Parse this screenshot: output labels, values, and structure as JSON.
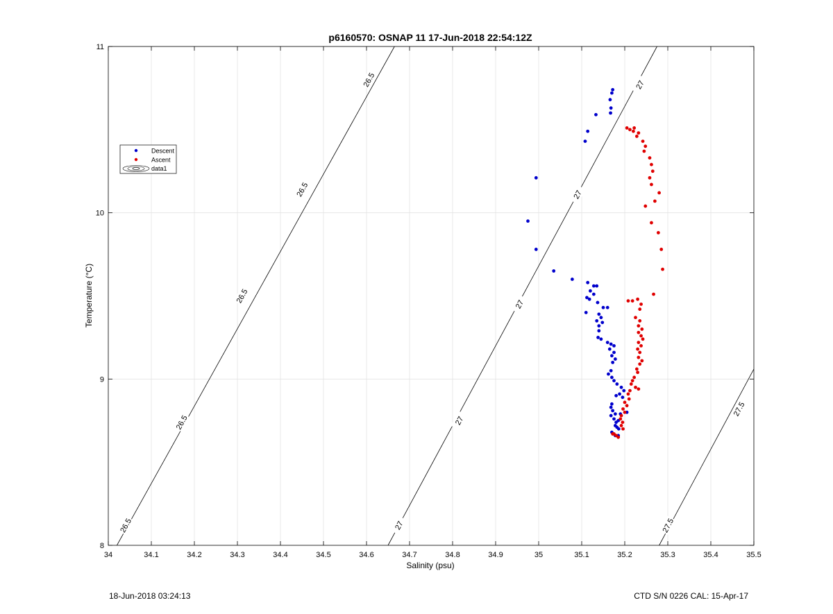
{
  "chart_data": {
    "type": "scatter",
    "title": "p6160570: OSNAP 11 17-Jun-2018 22:54:12Z",
    "xlabel": "Salinity (psu)",
    "ylabel": "Temperature (°C)",
    "xlim": [
      34,
      35.5
    ],
    "ylim": [
      8,
      11
    ],
    "xticks": [
      34,
      34.1,
      34.2,
      34.3,
      34.4,
      34.5,
      34.6,
      34.7,
      34.8,
      34.9,
      35,
      35.1,
      35.2,
      35.3,
      35.4,
      35.5
    ],
    "xtick_labels": [
      "34",
      "34.1",
      "34.2",
      "34.3",
      "34.4",
      "34.5",
      "34.6",
      "34.7",
      "34.8",
      "34.9",
      "35",
      "35.1",
      "35.2",
      "35.3",
      "35.4",
      "35.5"
    ],
    "yticks": [
      8,
      9,
      10,
      11
    ],
    "ytick_labels": [
      "8",
      "9",
      "10",
      "11"
    ],
    "grid": true,
    "legend": {
      "placement": "upper-left",
      "entries": [
        {
          "label": "Descent",
          "color": "#0000cc"
        },
        {
          "label": "Ascent",
          "color": "#e00000"
        },
        {
          "label": "data1",
          "color": "#000000"
        }
      ]
    },
    "contours": [
      {
        "level": "26.5",
        "line": [
          [
            34.02,
            8.0
          ],
          [
            34.665,
            11.0
          ]
        ],
        "labels": [
          [
            34.04,
            8.12
          ],
          [
            34.17,
            8.74
          ],
          [
            34.31,
            9.5
          ],
          [
            34.45,
            10.14
          ],
          [
            34.605,
            10.8
          ]
        ]
      },
      {
        "level": "27",
        "line": [
          [
            34.65,
            8.0
          ],
          [
            35.275,
            11.0
          ]
        ],
        "labels": [
          [
            34.675,
            8.12
          ],
          [
            34.815,
            8.75
          ],
          [
            34.955,
            9.45
          ],
          [
            35.09,
            10.11
          ],
          [
            35.235,
            10.77
          ]
        ]
      },
      {
        "level": "27.5",
        "line": [
          [
            35.28,
            8.0
          ],
          [
            35.5,
            9.06
          ]
        ],
        "labels": [
          [
            35.3,
            8.12
          ],
          [
            35.465,
            8.82
          ]
        ]
      }
    ],
    "series": [
      {
        "name": "Descent",
        "color": "#0000cc",
        "points": [
          [
            35.172,
            10.74
          ],
          [
            35.17,
            10.72
          ],
          [
            35.166,
            10.68
          ],
          [
            35.168,
            10.63
          ],
          [
            35.167,
            10.6
          ],
          [
            35.133,
            10.59
          ],
          [
            35.114,
            10.49
          ],
          [
            35.108,
            10.43
          ],
          [
            34.994,
            10.21
          ],
          [
            34.975,
            9.95
          ],
          [
            34.994,
            9.78
          ],
          [
            35.035,
            9.65
          ],
          [
            35.078,
            9.6
          ],
          [
            35.114,
            9.58
          ],
          [
            35.128,
            9.56
          ],
          [
            35.135,
            9.56
          ],
          [
            35.12,
            9.53
          ],
          [
            35.128,
            9.51
          ],
          [
            35.112,
            9.49
          ],
          [
            35.118,
            9.48
          ],
          [
            35.137,
            9.46
          ],
          [
            35.15,
            9.43
          ],
          [
            35.16,
            9.43
          ],
          [
            35.11,
            9.4
          ],
          [
            35.14,
            9.39
          ],
          [
            35.145,
            9.37
          ],
          [
            35.135,
            9.35
          ],
          [
            35.148,
            9.34
          ],
          [
            35.14,
            9.32
          ],
          [
            35.14,
            9.29
          ],
          [
            35.138,
            9.25
          ],
          [
            35.145,
            9.24
          ],
          [
            35.16,
            9.22
          ],
          [
            35.168,
            9.21
          ],
          [
            35.175,
            9.2
          ],
          [
            35.165,
            9.18
          ],
          [
            35.175,
            9.16
          ],
          [
            35.17,
            9.14
          ],
          [
            35.178,
            9.12
          ],
          [
            35.172,
            9.1
          ],
          [
            35.168,
            9.05
          ],
          [
            35.162,
            9.03
          ],
          [
            35.17,
            9.01
          ],
          [
            35.175,
            8.99
          ],
          [
            35.182,
            8.97
          ],
          [
            35.192,
            8.95
          ],
          [
            35.198,
            8.93
          ],
          [
            35.188,
            8.91
          ],
          [
            35.18,
            8.9
          ],
          [
            35.195,
            8.89
          ],
          [
            35.17,
            8.85
          ],
          [
            35.168,
            8.83
          ],
          [
            35.172,
            8.81
          ],
          [
            35.178,
            8.79
          ],
          [
            35.168,
            8.78
          ],
          [
            35.19,
            8.79
          ],
          [
            35.205,
            8.8
          ],
          [
            35.175,
            8.76
          ],
          [
            35.185,
            8.75
          ],
          [
            35.18,
            8.74
          ],
          [
            35.178,
            8.72
          ],
          [
            35.182,
            8.71
          ],
          [
            35.186,
            8.7
          ],
          [
            35.17,
            8.68
          ],
          [
            35.178,
            8.66
          ],
          [
            35.185,
            8.66
          ]
        ]
      },
      {
        "name": "Ascent",
        "color": "#e00000",
        "points": [
          [
            35.205,
            10.51
          ],
          [
            35.212,
            10.5
          ],
          [
            35.22,
            10.49
          ],
          [
            35.232,
            10.48
          ],
          [
            35.222,
            10.51
          ],
          [
            35.228,
            10.46
          ],
          [
            35.242,
            10.43
          ],
          [
            35.248,
            10.4
          ],
          [
            35.245,
            10.37
          ],
          [
            35.258,
            10.33
          ],
          [
            35.262,
            10.29
          ],
          [
            35.265,
            10.25
          ],
          [
            35.258,
            10.21
          ],
          [
            35.262,
            10.17
          ],
          [
            35.28,
            10.12
          ],
          [
            35.27,
            10.07
          ],
          [
            35.248,
            10.04
          ],
          [
            35.262,
            9.94
          ],
          [
            35.278,
            9.88
          ],
          [
            35.285,
            9.78
          ],
          [
            35.288,
            9.66
          ],
          [
            35.267,
            9.51
          ],
          [
            35.208,
            9.47
          ],
          [
            35.218,
            9.47
          ],
          [
            35.23,
            9.48
          ],
          [
            35.238,
            9.45
          ],
          [
            35.235,
            9.42
          ],
          [
            35.225,
            9.37
          ],
          [
            35.235,
            9.35
          ],
          [
            35.232,
            9.32
          ],
          [
            35.24,
            9.3
          ],
          [
            35.232,
            9.28
          ],
          [
            35.238,
            9.26
          ],
          [
            35.242,
            9.24
          ],
          [
            35.232,
            9.22
          ],
          [
            35.238,
            9.2
          ],
          [
            35.23,
            9.18
          ],
          [
            35.235,
            9.16
          ],
          [
            35.232,
            9.13
          ],
          [
            35.24,
            9.11
          ],
          [
            35.235,
            9.09
          ],
          [
            35.228,
            9.06
          ],
          [
            35.23,
            9.04
          ],
          [
            35.222,
            9.01
          ],
          [
            35.218,
            8.99
          ],
          [
            35.215,
            8.97
          ],
          [
            35.225,
            8.95
          ],
          [
            35.232,
            8.94
          ],
          [
            35.212,
            8.93
          ],
          [
            35.208,
            8.91
          ],
          [
            35.21,
            8.88
          ],
          [
            35.2,
            8.86
          ],
          [
            35.205,
            8.84
          ],
          [
            35.196,
            8.82
          ],
          [
            35.2,
            8.8
          ],
          [
            35.192,
            8.78
          ],
          [
            35.19,
            8.76
          ],
          [
            35.195,
            8.74
          ],
          [
            35.192,
            8.72
          ],
          [
            35.196,
            8.7
          ],
          [
            35.175,
            8.67
          ],
          [
            35.18,
            8.66
          ],
          [
            35.185,
            8.65
          ],
          [
            35.172,
            8.67
          ]
        ]
      }
    ]
  },
  "footer": {
    "left": "18-Jun-2018 03:24:13",
    "right": "CTD S/N 0226  CAL: 15-Apr-17"
  }
}
